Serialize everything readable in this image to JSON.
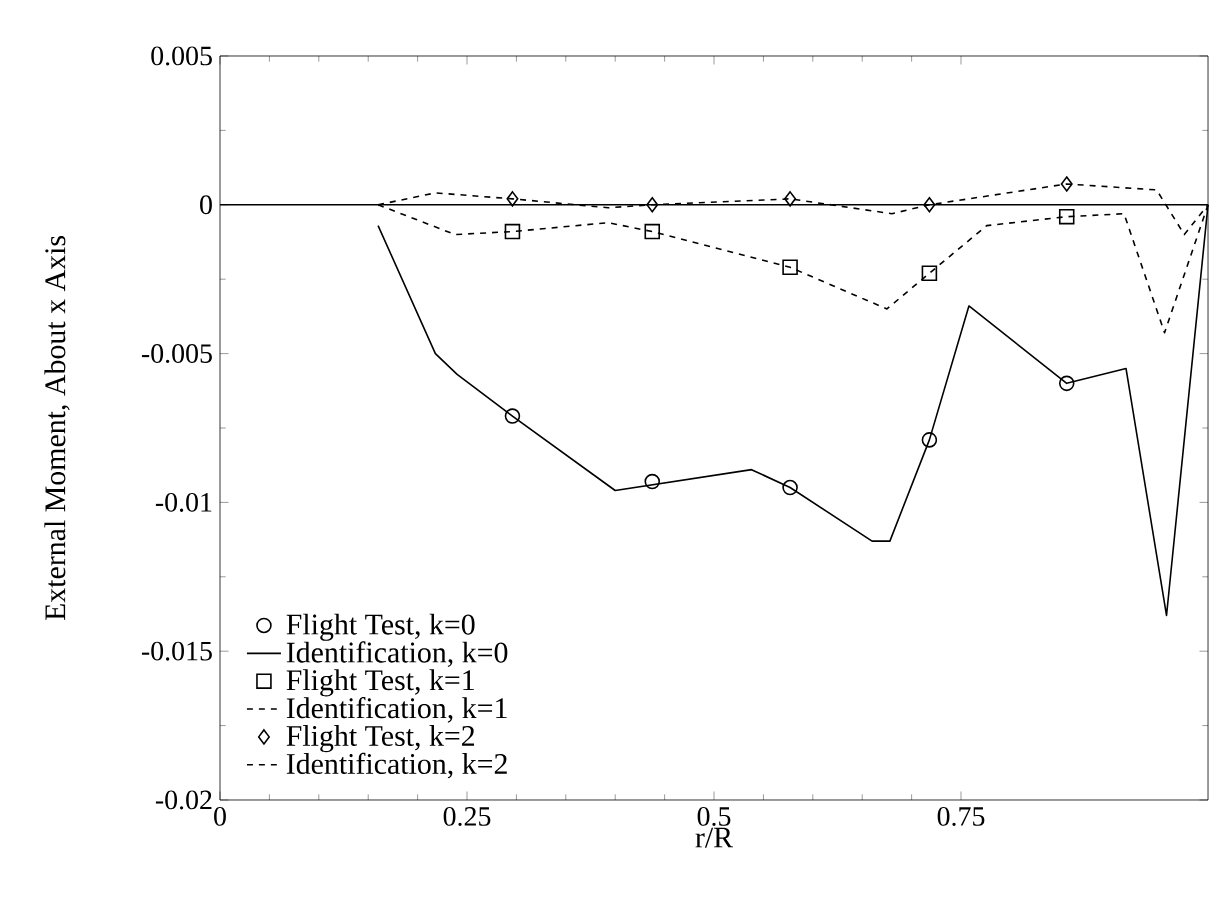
{
  "chart_data": {
    "type": "line",
    "xlabel": "r/R",
    "ylabel": "External Moment, About x Axis",
    "xlim": [
      0,
      1
    ],
    "ylim": [
      -0.02,
      0.005
    ],
    "xticks": [
      0,
      0.25,
      0.5,
      0.75
    ],
    "yticks": [
      -0.02,
      -0.015,
      -0.01,
      -0.005,
      0,
      0.005
    ],
    "legend": "bottom left",
    "ref_lines": [
      {
        "axis": "y",
        "value": 0,
        "color": "#000000"
      }
    ],
    "series": [
      {
        "name": "Flight Test, k=0",
        "type": "scatter",
        "marker": "circle",
        "color": "#000000",
        "x": [
          0.296,
          0.4375,
          0.577,
          0.718,
          0.857
        ],
        "values": [
          -0.0071,
          -0.0093,
          -0.0095,
          -0.0079,
          -0.006
        ]
      },
      {
        "name": "Identification, k=0",
        "line_style": "solid",
        "color": "#000000",
        "x": [
          0.16,
          0.218,
          0.24,
          0.296,
          0.4,
          0.538,
          0.577,
          0.66,
          0.678,
          0.718,
          0.758,
          0.857,
          0.917,
          0.958,
          1.0
        ],
        "values": [
          -0.0007,
          -0.005,
          -0.0057,
          -0.0071,
          -0.0096,
          -0.0089,
          -0.0095,
          -0.0113,
          -0.0113,
          -0.0079,
          -0.0034,
          -0.006,
          -0.0055,
          -0.0138,
          0
        ]
      },
      {
        "name": "Flight Test, k=1",
        "type": "scatter",
        "marker": "square",
        "color": "#000000",
        "x": [
          0.296,
          0.4375,
          0.577,
          0.718,
          0.857
        ],
        "values": [
          -0.0009,
          -0.0009,
          -0.0021,
          -0.0023,
          -0.0004
        ]
      },
      {
        "name": "Identification, k=1",
        "line_style": "dashed",
        "color": "#000000",
        "x": [
          0.16,
          0.238,
          0.296,
          0.393,
          0.4375,
          0.577,
          0.675,
          0.718,
          0.776,
          0.857,
          0.915,
          0.956,
          1.0
        ],
        "values": [
          0,
          -0.001,
          -0.0009,
          -0.0006,
          -0.0009,
          -0.0021,
          -0.0035,
          -0.0023,
          -0.0007,
          -0.0004,
          -0.0003,
          -0.0043,
          0
        ]
      },
      {
        "name": "Flight Test, k=2",
        "type": "scatter",
        "marker": "diamond",
        "color": "#000000",
        "x": [
          0.296,
          0.4375,
          0.577,
          0.718,
          0.857
        ],
        "values": [
          0.0002,
          0,
          0.0002,
          0,
          0.0007
        ]
      },
      {
        "name": "Identification, k=2",
        "line_style": "dashed",
        "color": "#000000",
        "x": [
          0.16,
          0.218,
          0.296,
          0.393,
          0.4375,
          0.577,
          0.68,
          0.718,
          0.857,
          0.948,
          0.976,
          1.0
        ],
        "values": [
          0,
          0.0004,
          0.0002,
          -0.0001,
          0,
          0.0002,
          -0.0003,
          0,
          0.0007,
          0.0005,
          -0.001,
          0
        ]
      }
    ]
  }
}
